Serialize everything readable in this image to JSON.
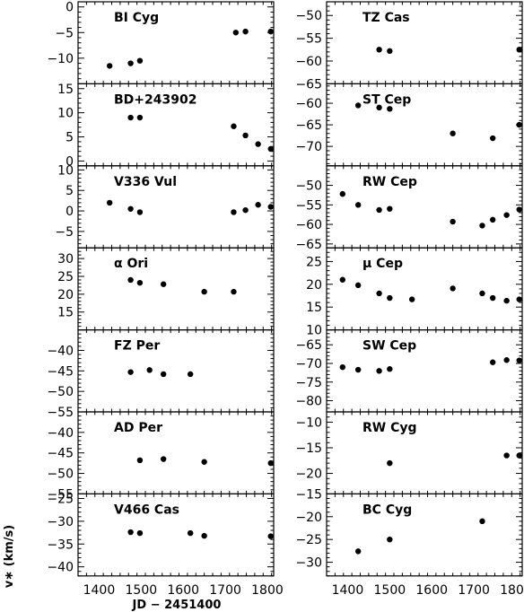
{
  "chart_data": {
    "type": "scatter",
    "xlabel": "JD − 2451400",
    "ylabel": "v∗ (km/s)",
    "xlim": [
      1350,
      1815
    ],
    "xticks": [
      1400,
      1500,
      1600,
      1700,
      1800
    ],
    "xtick_labels": [
      "1400",
      "1500",
      "1600",
      "1700",
      "1800"
    ],
    "columns": [
      [
        {
          "name": "BI Cyg",
          "ylim": [
            -15,
            1
          ],
          "yticks": [
            0,
            -5,
            -10,
            -15
          ],
          "ytick_labels": [
            "0",
            "−5",
            "−10",
            ""
          ],
          "x": [
            1425,
            1475,
            1497,
            1725,
            1748,
            1808
          ],
          "y": [
            -11.5,
            -11,
            -10.5,
            -5,
            -4.8,
            -4.8
          ]
        },
        {
          "name": "BD+243902",
          "ylim": [
            -1,
            16
          ],
          "yticks": [
            15,
            10,
            5,
            0
          ],
          "ytick_labels": [
            "15",
            "10",
            "5",
            "0"
          ],
          "x": [
            1475,
            1497,
            1720,
            1748,
            1778,
            1808
          ],
          "y": [
            9,
            9,
            7.2,
            5.3,
            3.5,
            2.5
          ]
        },
        {
          "name": "V336 Vul",
          "ylim": [
            -9,
            11
          ],
          "yticks": [
            10,
            5,
            0,
            -5
          ],
          "ytick_labels": [
            "10",
            "5",
            "0",
            "−5"
          ],
          "x": [
            1425,
            1475,
            1497,
            1720,
            1748,
            1778,
            1808
          ],
          "y": [
            2,
            0.5,
            -0.3,
            -0.3,
            0.2,
            1.5,
            1
          ]
        },
        {
          "name": "α Ori",
          "ylim": [
            10,
            33
          ],
          "yticks": [
            30,
            25,
            20,
            15
          ],
          "ytick_labels": [
            "30",
            "25",
            "20",
            "15"
          ],
          "x": [
            1475,
            1497,
            1553,
            1650,
            1720
          ],
          "y": [
            24,
            23.2,
            22.8,
            20.7,
            20.7
          ]
        },
        {
          "name": "FZ Per",
          "ylim": [
            -55,
            -35
          ],
          "yticks": [
            -40,
            -45,
            -50,
            -55
          ],
          "ytick_labels": [
            "−40",
            "−45",
            "−50",
            "−55"
          ],
          "x": [
            1475,
            1520,
            1553,
            1617
          ],
          "y": [
            -45.3,
            -44.8,
            -45.8,
            -45.8
          ]
        },
        {
          "name": "AD Per",
          "ylim": [
            -55,
            -35
          ],
          "yticks": [
            -40,
            -45,
            -50,
            -55
          ],
          "ytick_labels": [
            "−40",
            "−45",
            "−50",
            "−55"
          ],
          "x": [
            1497,
            1553,
            1650,
            1808
          ],
          "y": [
            -46.8,
            -46.5,
            -47.2,
            -47.5
          ]
        },
        {
          "name": "V466 Cas",
          "ylim": [
            -42,
            -24
          ],
          "yticks": [
            -25,
            -30,
            -35,
            -40
          ],
          "ytick_labels": [
            "−25",
            "−30",
            "−35",
            "−40"
          ],
          "x": [
            1475,
            1497,
            1617,
            1650,
            1808
          ],
          "y": [
            -32.4,
            -32.6,
            -32.6,
            -33.2,
            -33.3
          ]
        }
      ],
      [
        {
          "name": "TZ Cas",
          "ylim": [
            -65,
            -47
          ],
          "yticks": [
            -50,
            -55,
            -60,
            -65
          ],
          "ytick_labels": [
            "−50",
            "−55",
            "−60",
            "−65"
          ],
          "x": [
            1475,
            1500,
            1808
          ],
          "y": [
            -57.5,
            -57.8,
            -57.5
          ]
        },
        {
          "name": "ST Cep",
          "ylim": [
            -74.5,
            -55.5
          ],
          "yticks": [
            -60,
            -65,
            -70
          ],
          "ytick_labels": [
            "−60",
            "−65",
            "−70"
          ],
          "x": [
            1425,
            1475,
            1500,
            1650,
            1745,
            1808
          ],
          "y": [
            -60.5,
            -61,
            -61.3,
            -67,
            -68.1,
            -65
          ]
        },
        {
          "name": "RW Cep",
          "ylim": [
            -66,
            -45
          ],
          "yticks": [
            -50,
            -55,
            -60,
            -65
          ],
          "ytick_labels": [
            "−50",
            "−55",
            "−60",
            "−65"
          ],
          "x": [
            1388,
            1425,
            1475,
            1500,
            1650,
            1720,
            1745,
            1778,
            1808
          ],
          "y": [
            -52.2,
            -55,
            -56.3,
            -56,
            -59.3,
            -60.3,
            -58.8,
            -57.6,
            -56.2
          ]
        },
        {
          "name": "μ Cep",
          "ylim": [
            10,
            28
          ],
          "yticks": [
            25,
            20,
            15,
            10
          ],
          "ytick_labels": [
            "25",
            "20",
            "15",
            "10"
          ],
          "x": [
            1388,
            1425,
            1475,
            1500,
            1553,
            1650,
            1720,
            1745,
            1778,
            1808
          ],
          "y": [
            21,
            19.8,
            18,
            17,
            16.7,
            19.1,
            18,
            17,
            16.4,
            16.7
          ]
        },
        {
          "name": "SW Cep",
          "ylim": [
            -83,
            -61
          ],
          "yticks": [
            -65,
            -70,
            -75,
            -80
          ],
          "ytick_labels": [
            "−65",
            "−70",
            "−75",
            "−80"
          ],
          "x": [
            1388,
            1425,
            1475,
            1500,
            1745,
            1778,
            1808
          ],
          "y": [
            -71,
            -71.7,
            -72,
            -71.5,
            -69.7,
            -69.1,
            -69.2
          ]
        },
        {
          "name": "RW Cyg",
          "ylim": [
            -24,
            -8
          ],
          "yticks": [
            -10,
            -15,
            -20
          ],
          "ytick_labels": [
            "−10",
            "−15",
            "−20"
          ],
          "x": [
            1500,
            1778,
            1808
          ],
          "y": [
            -18,
            -16.5,
            -16.5
          ]
        },
        {
          "name": "BC Cyg",
          "ylim": [
            -33,
            -15
          ],
          "yticks": [
            -15,
            -20,
            -25,
            -30
          ],
          "ytick_labels": [
            "−15",
            "−20",
            "−25",
            "−30"
          ],
          "x": [
            1425,
            1500,
            1720
          ],
          "y": [
            -27.6,
            -25,
            -21
          ]
        }
      ]
    ]
  }
}
